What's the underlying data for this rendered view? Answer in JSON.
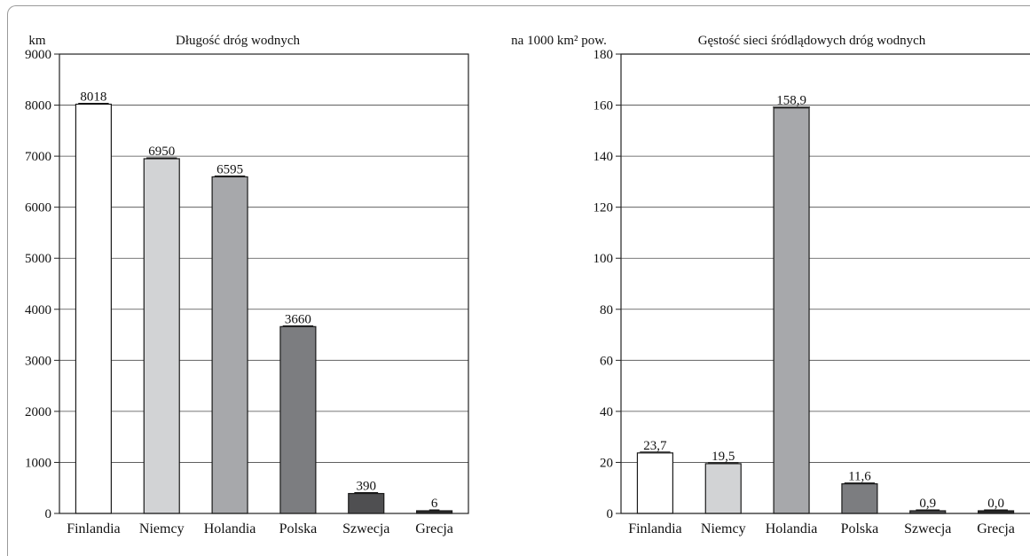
{
  "chart_data": [
    {
      "type": "bar",
      "title": "Długość dróg wodnych",
      "ylabel": "km",
      "ylim": [
        0,
        9000
      ],
      "ytick_step": 1000,
      "categories": [
        "Finlandia",
        "Niemcy",
        "Holandia",
        "Polska",
        "Szwecja",
        "Grecja"
      ],
      "values": [
        8018,
        6950,
        6595,
        3660,
        390,
        6
      ],
      "value_labels": [
        "8018",
        "6950",
        "6595",
        "3660",
        "390",
        "6"
      ],
      "bar_colors": [
        "#ffffff",
        "#d2d3d5",
        "#a7a8ab",
        "#7c7d80",
        "#4f4f51",
        "#2a2a2a"
      ],
      "grid": true
    },
    {
      "type": "bar",
      "title": "Gęstość sieci śródlądowych dróg wodnych",
      "ylabel": "na 1000 km² pow.",
      "ylim": [
        0,
        180
      ],
      "ytick_step": 20,
      "categories": [
        "Finlandia",
        "Niemcy",
        "Holandia",
        "Polska",
        "Szwecja",
        "Grecja"
      ],
      "values": [
        23.7,
        19.5,
        158.9,
        11.6,
        0.9,
        0.0
      ],
      "value_labels": [
        "23,7",
        "19,5",
        "158,9",
        "11,6",
        "0,9",
        "0,0"
      ],
      "bar_colors": [
        "#ffffff",
        "#d2d3d5",
        "#a7a8ab",
        "#7c7d80",
        "#4f4f51",
        "#2a2a2a"
      ],
      "grid": true
    }
  ]
}
